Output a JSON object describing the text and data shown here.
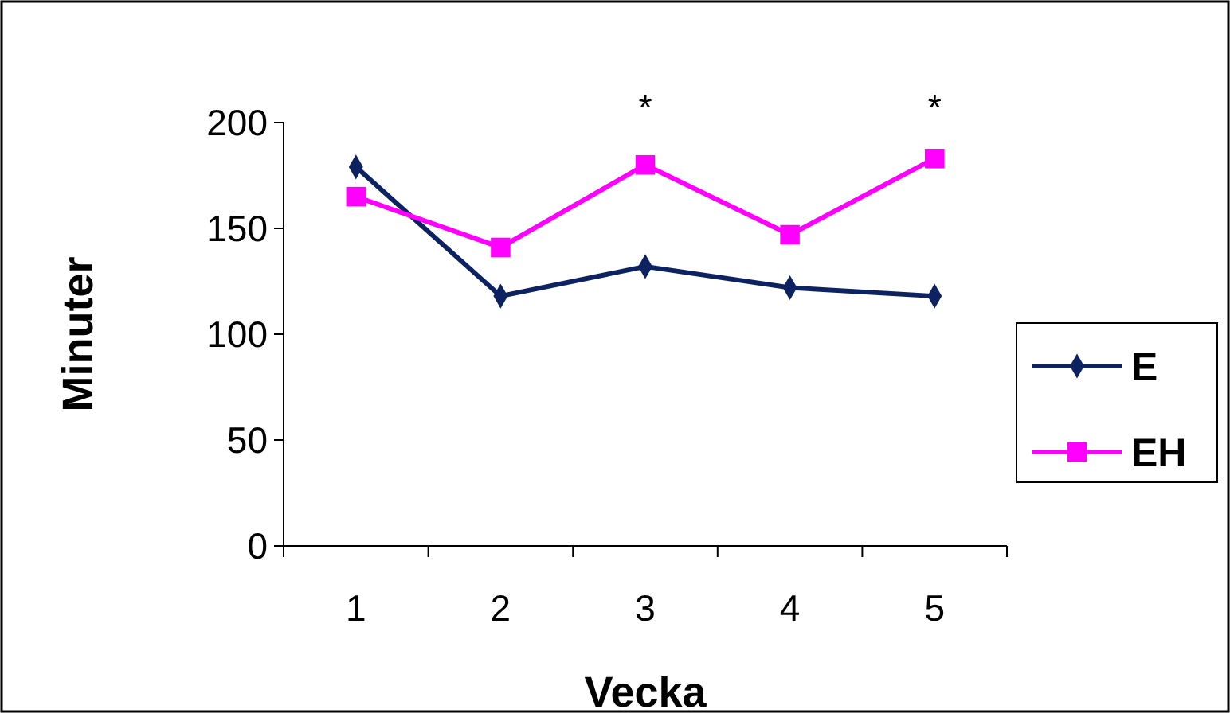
{
  "chart_data": {
    "type": "line",
    "xlabel": "Vecka",
    "ylabel": "Minuter",
    "categories": [
      "1",
      "2",
      "3",
      "4",
      "5"
    ],
    "series": [
      {
        "name": "E",
        "color": "#0d2260",
        "marker": "diamond",
        "values": [
          179,
          118,
          132,
          122,
          118
        ]
      },
      {
        "name": "EH",
        "color": "#ff00ff",
        "marker": "square",
        "values": [
          165,
          141,
          180,
          147,
          183
        ]
      }
    ],
    "ylim": [
      0,
      200
    ],
    "yticks": [
      0,
      50,
      100,
      150,
      200
    ],
    "grid": false,
    "legend": "right",
    "annotations": [
      "*",
      "*"
    ]
  }
}
